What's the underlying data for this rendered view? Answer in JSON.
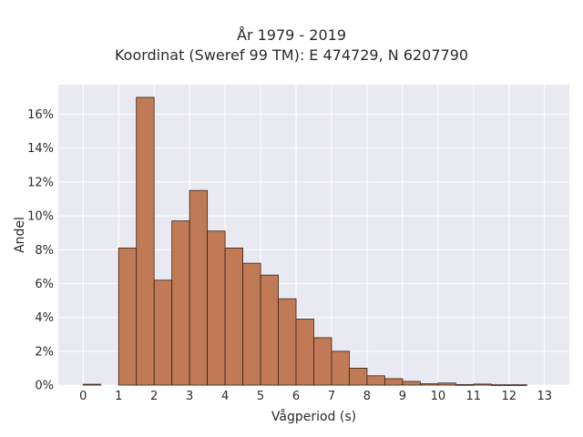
{
  "chart_data": {
    "type": "bar",
    "title_lines": [
      "År 1979 - 2019",
      "Koordinat (Sweref 99 TM): E 474729, N 6207790"
    ],
    "xlabel": "Vågperiod (s)",
    "ylabel": "Andel",
    "xlim": [
      -0.7,
      13.7
    ],
    "ylim": [
      0,
      0.1775
    ],
    "x_ticks": [
      0,
      1,
      2,
      3,
      4,
      5,
      6,
      7,
      8,
      9,
      10,
      11,
      12,
      13
    ],
    "x_tick_labels": [
      "0",
      "1",
      "2",
      "3",
      "4",
      "5",
      "6",
      "7",
      "8",
      "9",
      "10",
      "11",
      "12",
      "13"
    ],
    "y_ticks": [
      0,
      0.02,
      0.04,
      0.06,
      0.08,
      0.1,
      0.12,
      0.14,
      0.16
    ],
    "y_tick_labels": [
      "0%",
      "2%",
      "4%",
      "6%",
      "8%",
      "10%",
      "12%",
      "14%",
      "16%"
    ],
    "bin_width": 0.5,
    "bins": [
      {
        "start": 0.0,
        "value": 0.0005
      },
      {
        "start": 0.5,
        "value": 0.0
      },
      {
        "start": 1.0,
        "value": 0.081
      },
      {
        "start": 1.5,
        "value": 0.17
      },
      {
        "start": 2.0,
        "value": 0.062
      },
      {
        "start": 2.5,
        "value": 0.097
      },
      {
        "start": 3.0,
        "value": 0.115
      },
      {
        "start": 3.5,
        "value": 0.091
      },
      {
        "start": 4.0,
        "value": 0.081
      },
      {
        "start": 4.5,
        "value": 0.072
      },
      {
        "start": 5.0,
        "value": 0.065
      },
      {
        "start": 5.5,
        "value": 0.051
      },
      {
        "start": 6.0,
        "value": 0.039
      },
      {
        "start": 6.5,
        "value": 0.028
      },
      {
        "start": 7.0,
        "value": 0.02
      },
      {
        "start": 7.5,
        "value": 0.01
      },
      {
        "start": 8.0,
        "value": 0.0055
      },
      {
        "start": 8.5,
        "value": 0.0038
      },
      {
        "start": 9.0,
        "value": 0.0022
      },
      {
        "start": 9.5,
        "value": 0.0008
      },
      {
        "start": 10.0,
        "value": 0.0012
      },
      {
        "start": 10.5,
        "value": 0.0003
      },
      {
        "start": 11.0,
        "value": 0.0006
      },
      {
        "start": 11.5,
        "value": 0.0002
      },
      {
        "start": 12.0,
        "value": 0.0002
      }
    ],
    "grid": true,
    "colors": {
      "bar_fill": "#c07a55",
      "bar_edge": "#3a2418",
      "plot_background": "#e9e9f1",
      "grid": "#ffffff"
    }
  }
}
